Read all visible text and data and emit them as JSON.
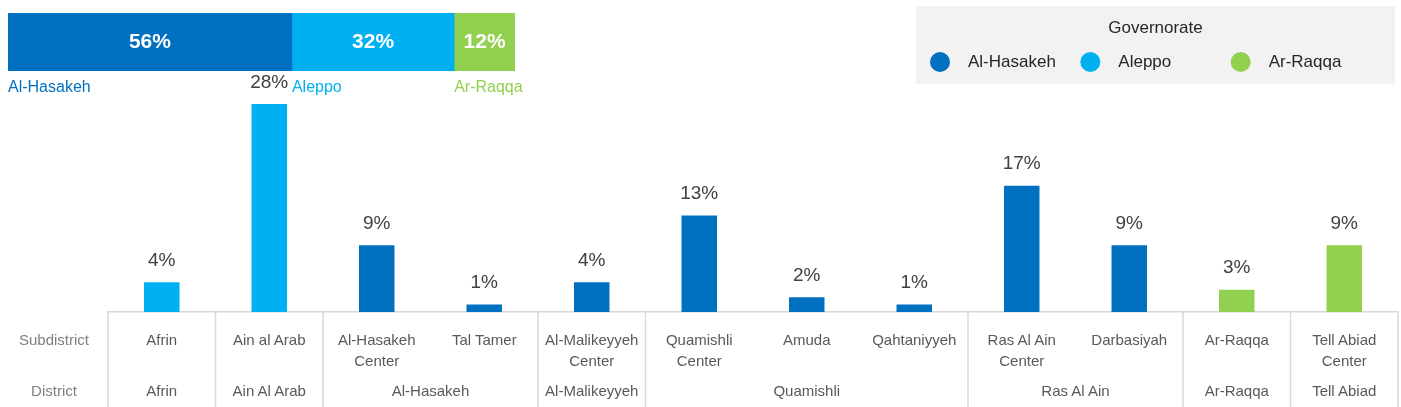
{
  "chart_data": [
    {
      "type": "bar",
      "orientation": "horizontal",
      "stacked": true,
      "categories": [
        null
      ],
      "tick_labels": false,
      "series": [
        {
          "name": "Al-Hasakeh",
          "color": "#0070c0",
          "values": [
            56
          ],
          "value_labels": [
            "56%"
          ]
        },
        {
          "name": "Aleppo",
          "color": "#00b0f0",
          "values": [
            32
          ],
          "value_labels": [
            "32%"
          ]
        },
        {
          "name": "Ar-Raqqa",
          "color": "#92d050",
          "values": [
            12
          ],
          "value_labels": [
            "12%"
          ]
        }
      ]
    },
    {
      "type": "bar",
      "categories": [
        "Afrin",
        "Ain al Arab",
        "Al-Hasakeh Center",
        "Tal Tamer",
        "Al-Malikeyyeh Center",
        "Quamishli Center",
        "Amuda",
        "Qahtaniyyeh",
        "Ras Al Ain Center",
        "Darbasiyah",
        "Ar-Raqqa",
        "Tell Abiad Center"
      ],
      "series": [
        {
          "name": "Al-Hasakeh",
          "color": "#0070c0",
          "values": [
            null,
            null,
            9,
            1,
            4,
            13,
            2,
            1,
            17,
            9,
            null,
            null
          ],
          "value_labels": [
            null,
            null,
            "9%",
            "1%",
            "4%",
            "13%",
            "2%",
            "1%",
            "17%",
            "9%",
            null,
            null
          ]
        },
        {
          "name": "Aleppo",
          "color": "#00b0f0",
          "values": [
            4,
            28,
            null,
            null,
            null,
            null,
            null,
            null,
            null,
            null,
            null,
            null
          ],
          "value_labels": [
            "4%",
            "28%",
            null,
            null,
            null,
            null,
            null,
            null,
            null,
            null,
            null,
            null
          ]
        },
        {
          "name": "Ar-Raqqa",
          "color": "#92d050",
          "values": [
            null,
            null,
            null,
            null,
            null,
            null,
            null,
            null,
            null,
            null,
            3,
            9
          ],
          "value_labels": [
            null,
            null,
            null,
            null,
            null,
            null,
            null,
            null,
            null,
            null,
            "3%",
            "9%"
          ]
        }
      ],
      "legend": "top right",
      "legend_title": "Governorate",
      "tick_labels": "x",
      "annotations": [
        "Subdistrict",
        "District",
        "Afrin",
        "Ain Al Arab",
        "Al-Hasakeh",
        "Al-Malikeyyeh",
        "Quamishli",
        "Ras Al Ain",
        "Ar-Raqqa",
        "Tell Abiad"
      ]
    }
  ]
}
